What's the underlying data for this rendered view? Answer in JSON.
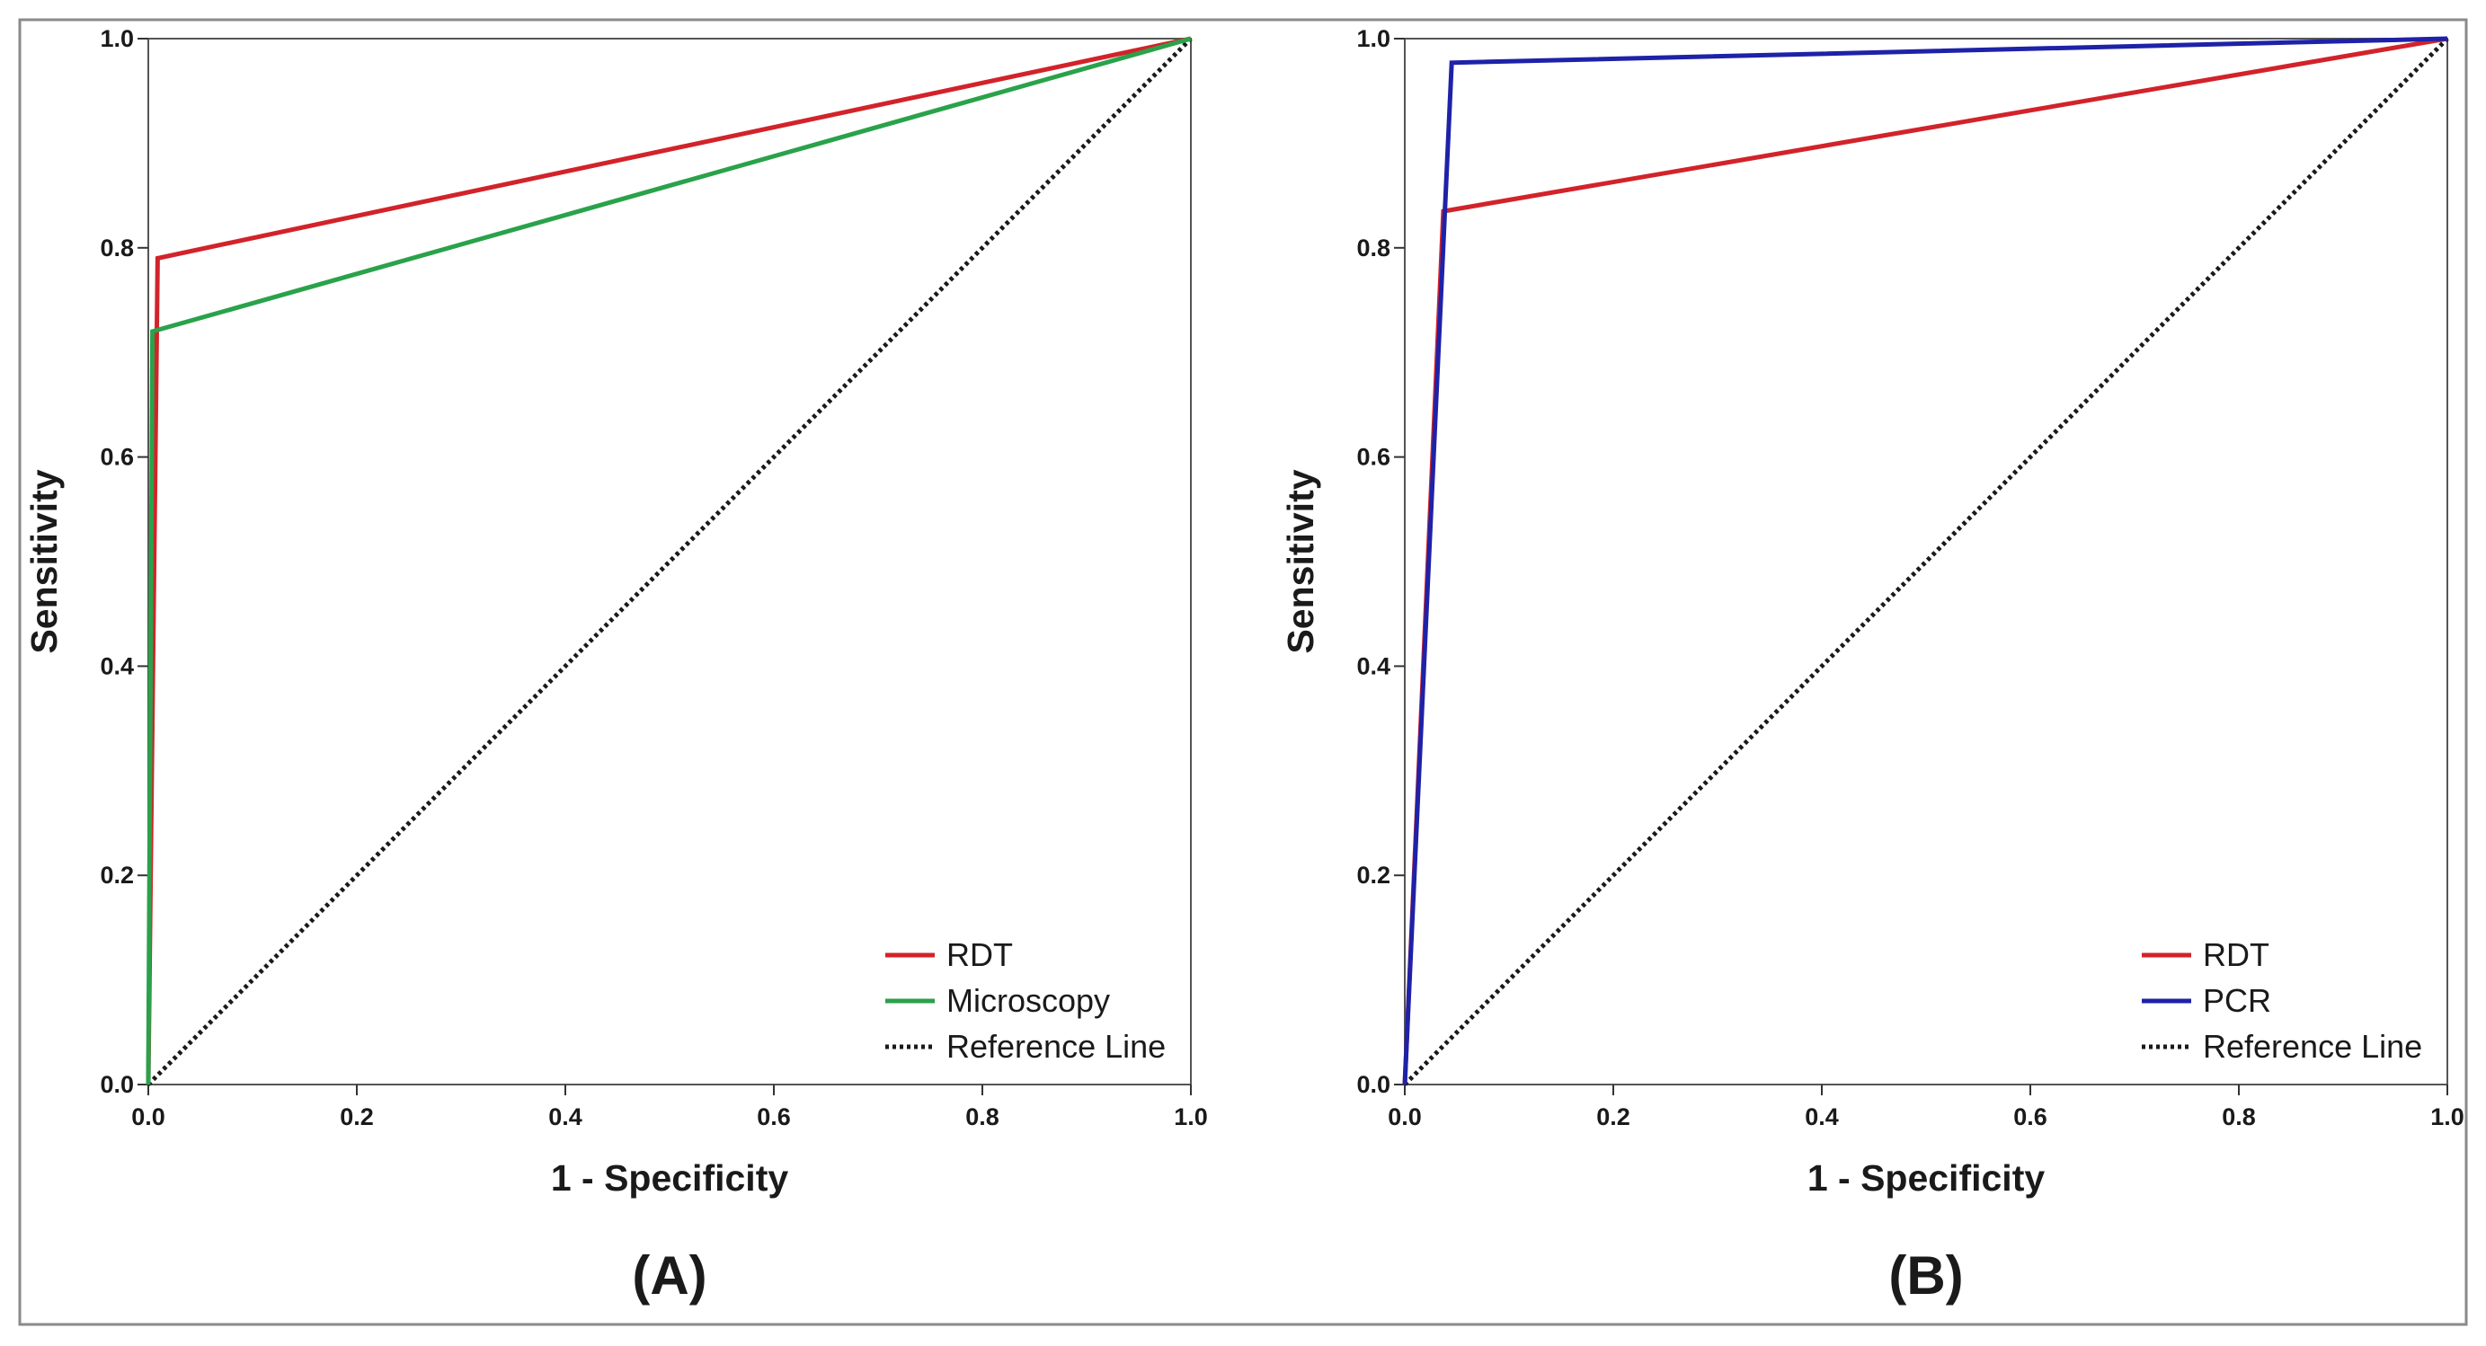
{
  "figure": {
    "panels": [
      "(A)",
      "(B)"
    ]
  },
  "chart_data": [
    {
      "type": "line",
      "panel_label": "(A)",
      "title": "",
      "xlabel": "1 - Specificity",
      "ylabel": "Sensitivity",
      "xlim": [
        0,
        1
      ],
      "ylim": [
        0,
        1
      ],
      "x_ticks": [
        "0.0",
        "0.2",
        "0.4",
        "0.6",
        "0.8",
        "1.0"
      ],
      "y_ticks": [
        "0.0",
        "0.2",
        "0.4",
        "0.6",
        "0.8",
        "1.0"
      ],
      "legend_position": "bottom-right",
      "series": [
        {
          "name": "RDT",
          "color": "#d2232a",
          "style": "solid",
          "x": [
            0,
            0.009,
            1
          ],
          "y": [
            0,
            0.79,
            1
          ]
        },
        {
          "name": "Microscopy",
          "color": "#2aa24a",
          "style": "solid",
          "x": [
            0,
            0.004,
            1
          ],
          "y": [
            0,
            0.72,
            1
          ]
        },
        {
          "name": "Reference Line",
          "color": "#1a1a1a",
          "style": "dotted",
          "x": [
            0,
            1
          ],
          "y": [
            0,
            1
          ]
        }
      ]
    },
    {
      "type": "line",
      "panel_label": "(B)",
      "title": "",
      "xlabel": "1 - Specificity",
      "ylabel": "Sensitivity",
      "xlim": [
        0,
        1
      ],
      "ylim": [
        0,
        1
      ],
      "x_ticks": [
        "0.0",
        "0.2",
        "0.4",
        "0.6",
        "0.8",
        "1.0"
      ],
      "y_ticks": [
        "0.0",
        "0.2",
        "0.4",
        "0.6",
        "0.8",
        "1.0"
      ],
      "legend_position": "bottom-right",
      "series": [
        {
          "name": "RDT",
          "color": "#d2232a",
          "style": "solid",
          "x": [
            0,
            0.037,
            1
          ],
          "y": [
            0,
            0.835,
            1
          ]
        },
        {
          "name": "PCR",
          "color": "#1e22a8",
          "style": "solid",
          "x": [
            0,
            0.045,
            1
          ],
          "y": [
            0,
            0.977,
            1
          ]
        },
        {
          "name": "Reference Line",
          "color": "#1a1a1a",
          "style": "dotted",
          "x": [
            0,
            1
          ],
          "y": [
            0,
            1
          ]
        }
      ]
    }
  ]
}
